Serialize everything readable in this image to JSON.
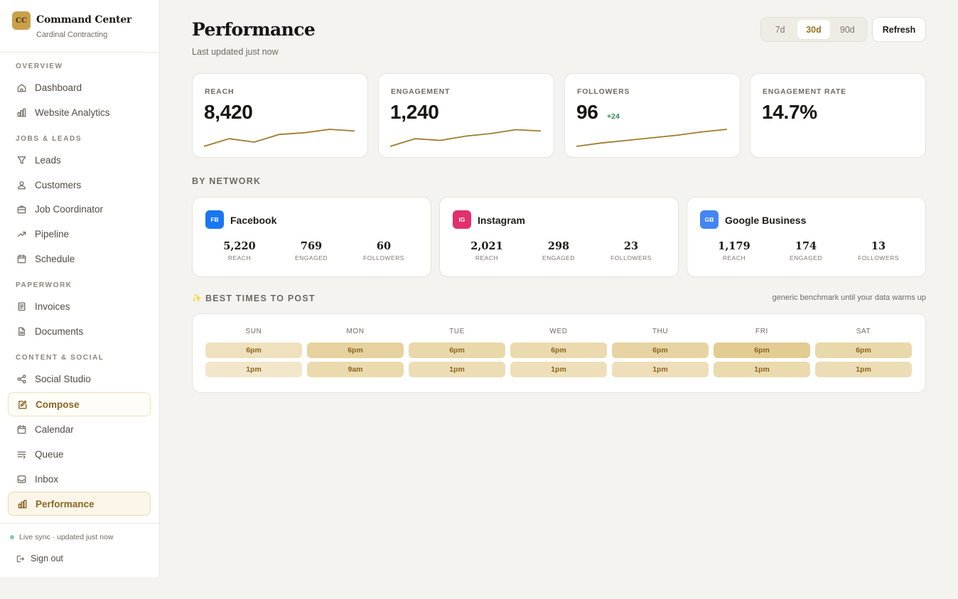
{
  "brand": {
    "logo": "CC",
    "title": "Command Center",
    "subtitle": "Cardinal Contracting"
  },
  "sidebar": {
    "sections": [
      {
        "title": "OVERVIEW"
      },
      {
        "title": "JOBS & LEADS"
      },
      {
        "title": "PAPERWORK"
      },
      {
        "title": "CONTENT & SOCIAL"
      }
    ],
    "items": [
      {
        "label": "Dashboard",
        "icon": "home-icon"
      },
      {
        "label": "Website Analytics",
        "icon": "bar-chart-icon"
      },
      {
        "label": "Leads",
        "icon": "funnel-icon"
      },
      {
        "label": "Customers",
        "icon": "users-icon"
      },
      {
        "label": "Job Coordinator",
        "icon": "briefcase-icon"
      },
      {
        "label": "Pipeline",
        "icon": "trend-up-icon"
      },
      {
        "label": "Schedule",
        "icon": "calendar-icon"
      },
      {
        "label": "Invoices",
        "icon": "receipt-icon"
      },
      {
        "label": "Documents",
        "icon": "document-icon"
      },
      {
        "label": "Social Studio",
        "icon": "share-icon"
      },
      {
        "label": "Compose",
        "icon": "edit-icon"
      },
      {
        "label": "Calendar",
        "icon": "calendar-icon"
      },
      {
        "label": "Queue",
        "icon": "queue-icon"
      },
      {
        "label": "Inbox",
        "icon": "inbox-icon"
      },
      {
        "label": "Performance",
        "icon": "bar-chart-icon",
        "active": true
      }
    ],
    "footer": {
      "sync": "Live sync · updated just now",
      "signout": "Sign out"
    }
  },
  "header": {
    "title": "Performance",
    "subtitle": "Last updated just now"
  },
  "range": {
    "options": [
      "7d",
      "30d",
      "90d"
    ],
    "selected": "30d"
  },
  "refresh_label": "Refresh",
  "stats": [
    {
      "label": "REACH",
      "value": "8,420",
      "trend": [
        0,
        0.45,
        0.25,
        0.7,
        0.8,
        1.0,
        0.9
      ]
    },
    {
      "label": "ENGAGEMENT",
      "value": "1,240",
      "trend": [
        0,
        0.45,
        0.35,
        0.6,
        0.75,
        0.98,
        0.9
      ]
    },
    {
      "label": "FOLLOWERS",
      "value": "96",
      "delta": "+24",
      "trend": [
        0,
        0.2,
        0.35,
        0.5,
        0.65,
        0.85,
        1.0
      ]
    },
    {
      "label": "ENGAGEMENT RATE",
      "value": "14.7%"
    }
  ],
  "by_network": {
    "title": "BY NETWORK",
    "networks": [
      {
        "badge": "FB",
        "name": "Facebook",
        "color": "#1877f2",
        "reach": "5,220",
        "engaged": "769",
        "followers": "60"
      },
      {
        "badge": "IG",
        "name": "Instagram",
        "color": "#e1306c",
        "reach": "2,021",
        "engaged": "298",
        "followers": "23"
      },
      {
        "badge": "GB",
        "name": "Google Business",
        "color": "#4285f4",
        "reach": "1,179",
        "engaged": "174",
        "followers": "13"
      }
    ],
    "labels": {
      "reach": "REACH",
      "engaged": "ENGAGED",
      "followers": "FOLLOWERS"
    }
  },
  "best_times": {
    "title": "BEST TIMES TO POST",
    "note": "generic benchmark until your data warms up",
    "days": [
      {
        "day": "SUN",
        "slots": [
          {
            "time": "6pm",
            "level": 0.35
          },
          {
            "time": "1pm",
            "level": 0.2
          }
        ]
      },
      {
        "day": "MON",
        "slots": [
          {
            "time": "6pm",
            "level": 0.75
          },
          {
            "time": "9am",
            "level": 0.55
          }
        ]
      },
      {
        "day": "TUE",
        "slots": [
          {
            "time": "6pm",
            "level": 0.6
          },
          {
            "time": "1pm",
            "level": 0.45
          }
        ]
      },
      {
        "day": "WED",
        "slots": [
          {
            "time": "6pm",
            "level": 0.55
          },
          {
            "time": "1pm",
            "level": 0.4
          }
        ]
      },
      {
        "day": "THU",
        "slots": [
          {
            "time": "6pm",
            "level": 0.7
          },
          {
            "time": "1pm",
            "level": 0.4
          }
        ]
      },
      {
        "day": "FRI",
        "slots": [
          {
            "time": "6pm",
            "level": 0.9
          },
          {
            "time": "1pm",
            "level": 0.55
          }
        ]
      },
      {
        "day": "SAT",
        "slots": [
          {
            "time": "6pm",
            "level": 0.6
          },
          {
            "time": "1pm",
            "level": 0.45
          }
        ]
      }
    ]
  },
  "colors": {
    "accent": "#9a7326",
    "spark": "#a07a2e",
    "positive": "#2f8a51",
    "slot_base": "#f3e6c2",
    "slot_strong": "#e0c88a"
  }
}
